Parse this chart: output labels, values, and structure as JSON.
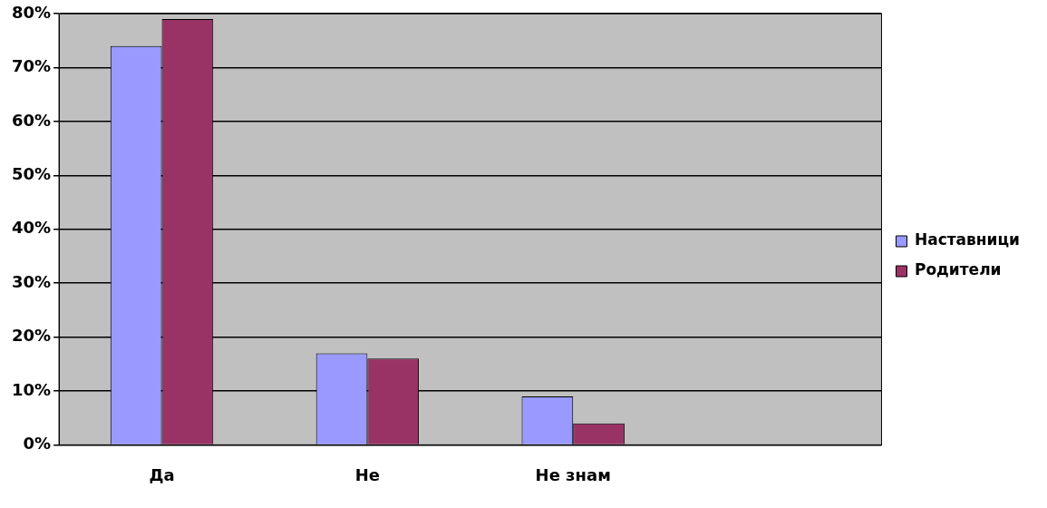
{
  "chart_data": {
    "type": "bar",
    "categories": [
      "Да",
      "Не",
      "Не знам",
      null
    ],
    "series": [
      {
        "name": "Наставници",
        "color": "#9999ff",
        "values": [
          74,
          17,
          9,
          null
        ]
      },
      {
        "name": "Родители",
        "color": "#993366",
        "values": [
          79,
          16,
          4,
          null
        ]
      }
    ],
    "ylim": [
      0,
      80
    ],
    "yticks": [
      {
        "value": 0,
        "label": "0%"
      },
      {
        "value": 10,
        "label": "10%"
      },
      {
        "value": 20,
        "label": "20%"
      },
      {
        "value": 30,
        "label": "30%"
      },
      {
        "value": 40,
        "label": "40%"
      },
      {
        "value": 50,
        "label": "50%"
      },
      {
        "value": 60,
        "label": "60%"
      },
      {
        "value": 70,
        "label": "70%"
      },
      {
        "value": 80,
        "label": "80%"
      }
    ],
    "grid": "y",
    "legend": "right"
  }
}
